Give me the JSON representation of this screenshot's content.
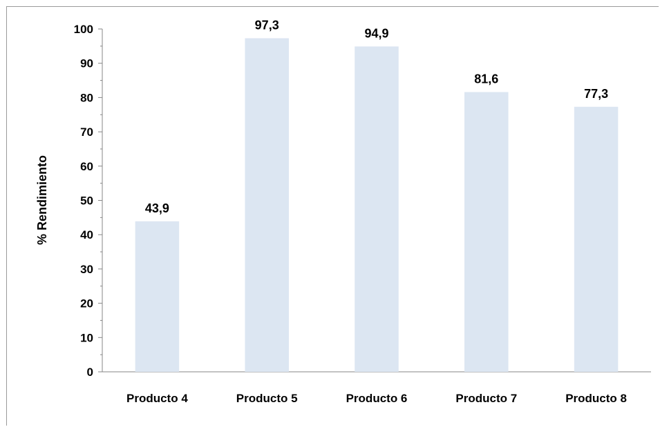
{
  "chart_data": {
    "type": "bar",
    "title": "",
    "xlabel": "",
    "ylabel": "% Rendimiento",
    "categories": [
      "Producto 4",
      "Producto 5",
      "Producto 6",
      "Producto 7",
      "Producto 8"
    ],
    "values": [
      43.9,
      97.3,
      94.9,
      81.6,
      77.3
    ],
    "data_labels": [
      "43,9",
      "97,3",
      "94,9",
      "81,6",
      "77,3"
    ],
    "ylim": [
      0,
      100
    ],
    "y_ticks": [
      0,
      10,
      20,
      30,
      40,
      50,
      60,
      70,
      80,
      90,
      100
    ],
    "y_tick_labels": [
      "0",
      "10",
      "20",
      "30",
      "40",
      "50",
      "60",
      "70",
      "80",
      "90",
      "100"
    ],
    "grid": false,
    "legend": "none",
    "bar_color": "#dce6f2",
    "axis_color": "#868686"
  }
}
